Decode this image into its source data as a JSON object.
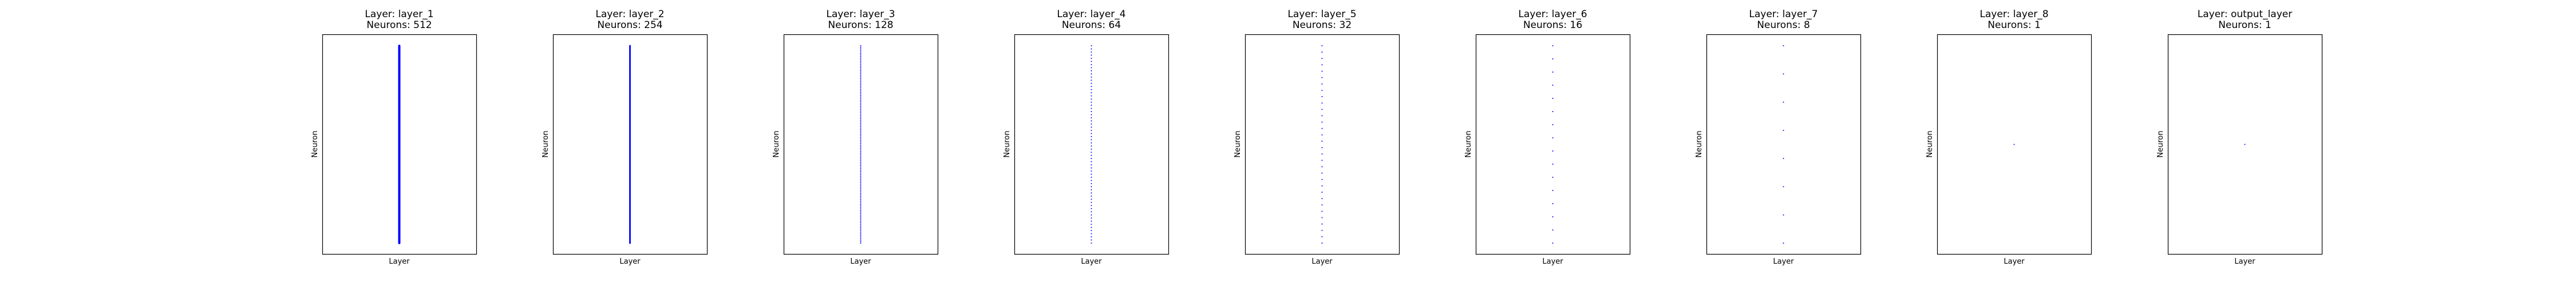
{
  "chart_data": [
    {
      "type": "scatter",
      "title": "Layer: layer_1",
      "subtitle": "Neurons: 512",
      "xlabel": "Layer",
      "ylabel": "Neuron",
      "n_points": 512,
      "color": "#0000ff",
      "grid": false
    },
    {
      "type": "scatter",
      "title": "Layer: layer_2",
      "subtitle": "Neurons: 254",
      "xlabel": "Layer",
      "ylabel": "Neuron",
      "n_points": 254,
      "color": "#0000ff",
      "grid": false
    },
    {
      "type": "scatter",
      "title": "Layer: layer_3",
      "subtitle": "Neurons: 128",
      "xlabel": "Layer",
      "ylabel": "Neuron",
      "n_points": 128,
      "color": "#0000ff",
      "grid": false
    },
    {
      "type": "scatter",
      "title": "Layer: layer_4",
      "subtitle": "Neurons: 64",
      "xlabel": "Layer",
      "ylabel": "Neuron",
      "n_points": 64,
      "color": "#0000ff",
      "grid": false
    },
    {
      "type": "scatter",
      "title": "Layer: layer_5",
      "subtitle": "Neurons: 32",
      "xlabel": "Layer",
      "ylabel": "Neuron",
      "n_points": 32,
      "color": "#0000ff",
      "grid": false
    },
    {
      "type": "scatter",
      "title": "Layer: layer_6",
      "subtitle": "Neurons: 16",
      "xlabel": "Layer",
      "ylabel": "Neuron",
      "n_points": 16,
      "color": "#0000ff",
      "grid": false
    },
    {
      "type": "scatter",
      "title": "Layer: layer_7",
      "subtitle": "Neurons: 8",
      "xlabel": "Layer",
      "ylabel": "Neuron",
      "n_points": 8,
      "color": "#0000ff",
      "grid": false
    },
    {
      "type": "scatter",
      "title": "Layer: layer_8",
      "subtitle": "Neurons: 1",
      "xlabel": "Layer",
      "ylabel": "Neuron",
      "n_points": 1,
      "color": "#0000ff",
      "grid": false
    },
    {
      "type": "scatter",
      "title": "Layer: output_layer",
      "subtitle": "Neurons: 1",
      "xlabel": "Layer",
      "ylabel": "Neuron",
      "n_points": 1,
      "color": "#0000ff",
      "grid": false
    }
  ]
}
